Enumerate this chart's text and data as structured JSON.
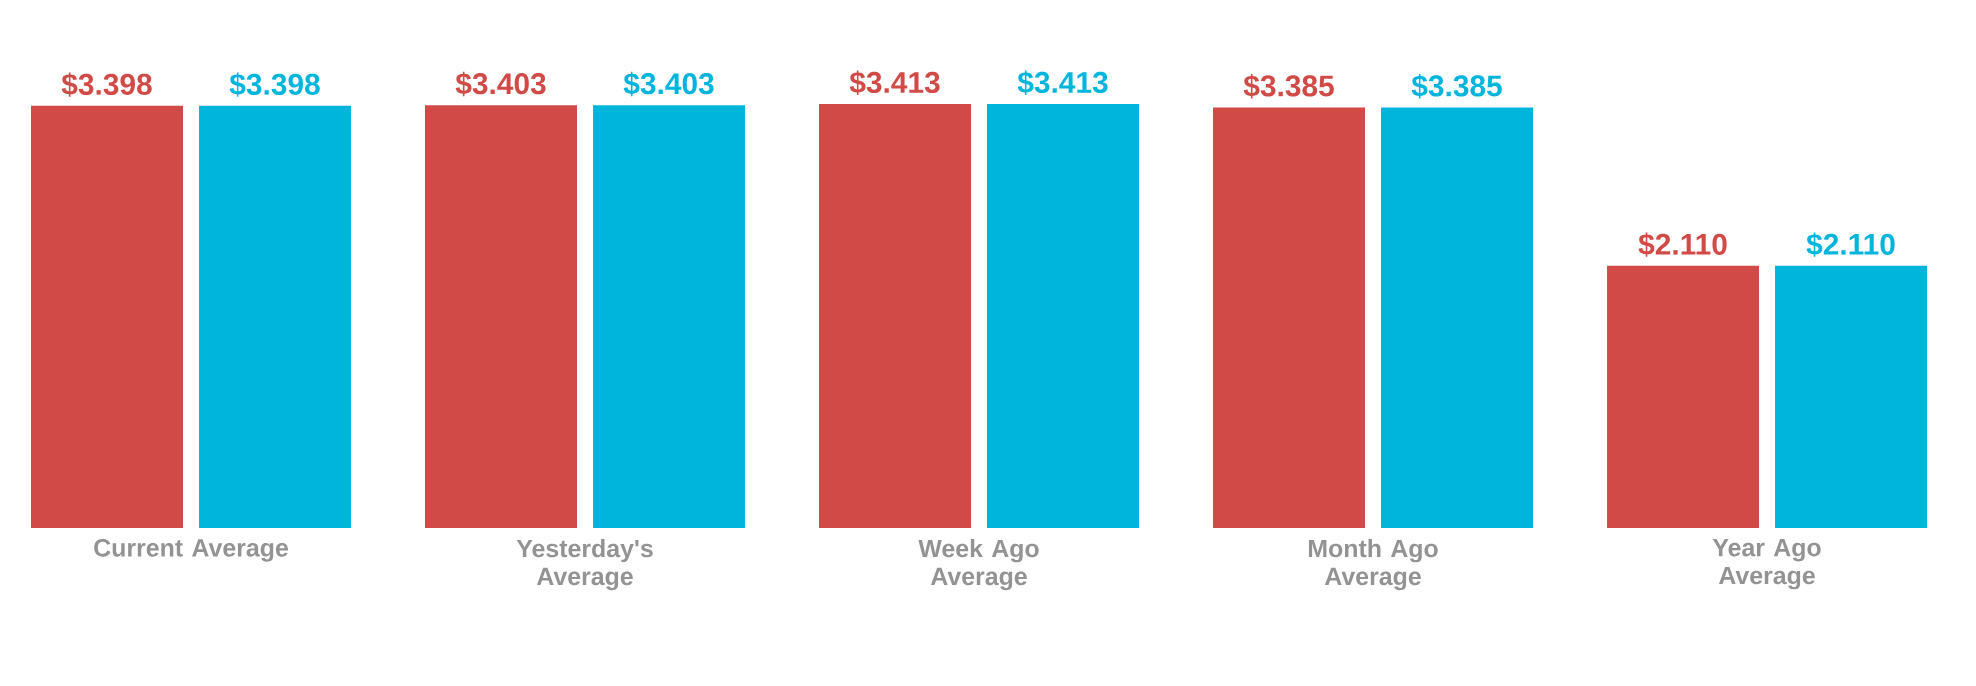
{
  "chart_data": {
    "type": "bar",
    "categories": [
      "Current Average",
      "Yesterday's Average",
      "Week Ago Average",
      "Month Ago Average",
      "Year Ago Average"
    ],
    "series": [
      {
        "color": "#d24a47",
        "values": [
          3.398,
          3.403,
          3.413,
          3.385,
          2.11
        ],
        "value_labels": [
          "$3.398",
          "$3.403",
          "$3.413",
          "$3.385",
          "$2.110"
        ]
      },
      {
        "color": "#00b5dc",
        "values": [
          3.398,
          3.403,
          3.413,
          3.385,
          2.11
        ],
        "value_labels": [
          "$3.398",
          "$3.403",
          "$3.413",
          "$3.385",
          "$2.110"
        ]
      }
    ]
  }
}
